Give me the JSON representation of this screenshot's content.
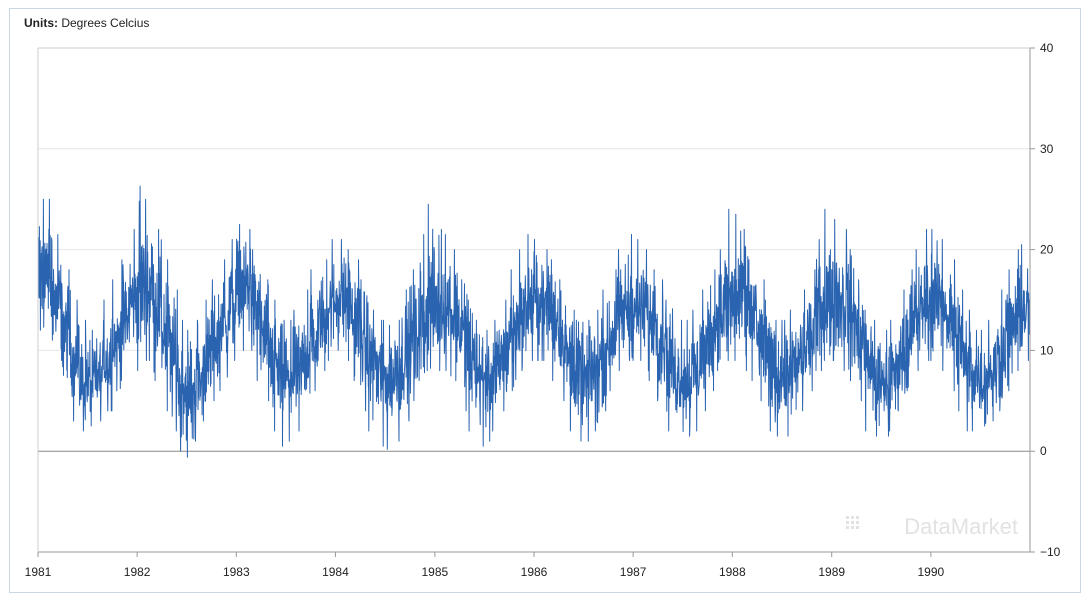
{
  "units": {
    "label": "Units:",
    "value": "Degrees Celcius"
  },
  "watermark": "DataMarket",
  "colors": {
    "series": "#2a63b0",
    "frame": "#c9d6e6",
    "grid": "#e6e6e6",
    "zero_line": "#8a8a8a"
  },
  "chart_data": {
    "type": "line",
    "title": "",
    "xlabel": "",
    "ylabel": "Degrees Celcius",
    "x_range": [
      "1981-01-01",
      "1990-12-31"
    ],
    "ylim": [
      -10,
      40
    ],
    "y_ticks": [
      40,
      30,
      20,
      10,
      0,
      -10
    ],
    "y_tick_labels": [
      "40",
      "30",
      "20",
      "10",
      "0",
      "−10"
    ],
    "x_ticks": [
      "1981",
      "1982",
      "1983",
      "1984",
      "1985",
      "1986",
      "1987",
      "1988",
      "1989",
      "1990"
    ],
    "grid": true,
    "y_axis_side": "right",
    "series": [
      {
        "x": [
          "1981-01",
          "1981-02",
          "1981-03",
          "1981-04",
          "1981-05",
          "1981-06",
          "1981-07",
          "1981-08",
          "1981-09",
          "1981-10",
          "1981-11",
          "1981-12",
          "1982-01",
          "1982-02",
          "1982-03",
          "1982-04",
          "1982-05",
          "1982-06",
          "1982-07",
          "1982-08",
          "1982-09",
          "1982-10",
          "1982-11",
          "1982-12",
          "1983-01",
          "1983-02",
          "1983-03",
          "1983-04",
          "1983-05",
          "1983-06",
          "1983-07",
          "1983-08",
          "1983-09",
          "1983-10",
          "1983-11",
          "1983-12",
          "1984-01",
          "1984-02",
          "1984-03",
          "1984-04",
          "1984-05",
          "1984-06",
          "1984-07",
          "1984-08",
          "1984-09",
          "1984-10",
          "1984-11",
          "1984-12",
          "1985-01",
          "1985-02",
          "1985-03",
          "1985-04",
          "1985-05",
          "1985-06",
          "1985-07",
          "1985-08",
          "1985-09",
          "1985-10",
          "1985-11",
          "1985-12",
          "1986-01",
          "1986-02",
          "1986-03",
          "1986-04",
          "1986-05",
          "1986-06",
          "1986-07",
          "1986-08",
          "1986-09",
          "1986-10",
          "1986-11",
          "1986-12",
          "1987-01",
          "1987-02",
          "1987-03",
          "1987-04",
          "1987-05",
          "1987-06",
          "1987-07",
          "1987-08",
          "1987-09",
          "1987-10",
          "1987-11",
          "1987-12",
          "1988-01",
          "1988-02",
          "1988-03",
          "1988-04",
          "1988-05",
          "1988-06",
          "1988-07",
          "1988-08",
          "1988-09",
          "1988-10",
          "1988-11",
          "1988-12",
          "1989-01",
          "1989-02",
          "1989-03",
          "1989-04",
          "1989-05",
          "1989-06",
          "1989-07",
          "1989-08",
          "1989-09",
          "1989-10",
          "1989-11",
          "1989-12",
          "1990-01",
          "1990-02",
          "1990-03",
          "1990-04",
          "1990-05",
          "1990-06",
          "1990-07",
          "1990-08",
          "1990-09",
          "1990-10",
          "1990-11",
          "1990-12"
        ],
        "mean": [
          17.5,
          17.5,
          14.5,
          12,
          9.5,
          7,
          7,
          7.5,
          9,
          11,
          13,
          15,
          16,
          16.5,
          14.5,
          12,
          9,
          6.5,
          5.5,
          7,
          9,
          11,
          12.5,
          14.5,
          16.5,
          16.5,
          14,
          11.5,
          9,
          7.5,
          7,
          8,
          9.5,
          11,
          13,
          14.5,
          15,
          15,
          13,
          11,
          9,
          7.5,
          7,
          8,
          9.5,
          11,
          13,
          14.5,
          14.5,
          14.5,
          13.5,
          11.5,
          9,
          7.5,
          7,
          8,
          9.5,
          11.5,
          13.5,
          14.5,
          14.5,
          14.5,
          13.5,
          11.5,
          9,
          7.5,
          7,
          8,
          9.5,
          11.5,
          13.5,
          14.5,
          14,
          14,
          13,
          11,
          9,
          7.5,
          7,
          8,
          9.5,
          11.5,
          13.5,
          14.5,
          15,
          15,
          13.5,
          11,
          9,
          7.5,
          7.5,
          8,
          9.5,
          11.5,
          13.5,
          14.5,
          15,
          15,
          13.5,
          11.5,
          9,
          7,
          6.5,
          7.5,
          9.5,
          11.5,
          13.5,
          15,
          15,
          15,
          13,
          11,
          8.5,
          7.5,
          7,
          8,
          9.5,
          11.5,
          13,
          14
        ],
        "high": [
          25,
          25,
          21.5,
          18,
          15,
          13,
          12,
          13,
          15,
          17,
          19,
          22,
          26.3,
          25,
          22,
          19,
          16,
          13,
          12,
          13,
          15,
          17,
          19,
          21,
          22.5,
          22,
          20,
          17,
          15,
          13,
          13,
          14,
          16,
          18,
          19,
          21,
          21,
          20,
          19,
          17,
          14,
          13,
          12.5,
          13,
          16,
          18,
          21.5,
          24.5,
          22,
          21.5,
          20,
          17,
          15,
          13,
          12,
          13,
          15,
          18,
          20,
          21.5,
          21,
          20,
          19,
          17,
          14,
          13,
          13,
          14,
          16,
          18,
          20,
          21.5,
          21,
          20,
          18,
          17,
          15,
          13,
          13,
          14,
          16,
          18,
          20,
          24,
          23.5,
          22,
          19,
          17,
          15,
          13,
          13,
          14,
          16,
          18,
          21,
          24,
          23,
          22,
          20,
          17,
          14,
          13,
          12,
          13,
          16,
          18,
          20,
          22,
          22,
          21,
          19,
          16,
          14,
          12,
          12,
          13,
          16,
          18,
          20,
          20.5
        ],
        "low": [
          12,
          11,
          9,
          6,
          3,
          2,
          2.5,
          3,
          4,
          6,
          7,
          9,
          8,
          9,
          7,
          4,
          2,
          0,
          -0.6,
          1,
          3,
          5,
          6,
          9,
          10,
          10,
          7,
          5,
          2,
          0.5,
          1,
          2,
          4,
          6,
          8,
          9,
          10,
          9,
          7,
          4,
          2,
          0.5,
          0.2,
          1,
          3,
          5,
          7,
          8,
          8,
          8,
          7,
          4,
          2,
          0.5,
          1,
          2,
          4,
          6,
          8,
          9,
          9,
          9,
          7,
          5,
          2,
          1,
          1,
          2,
          4,
          6,
          8,
          9,
          9,
          8,
          7,
          5,
          2,
          1.5,
          1.5,
          2,
          4,
          6,
          8,
          9,
          9,
          8,
          7,
          5,
          2,
          1.5,
          1.5,
          2,
          4,
          6,
          8,
          9,
          9,
          8,
          7,
          5,
          2,
          1.5,
          1.5,
          2,
          4,
          6,
          8,
          9,
          9,
          8,
          6,
          4,
          2,
          2,
          2.5,
          3,
          4,
          6,
          8,
          9
        ]
      }
    ]
  }
}
